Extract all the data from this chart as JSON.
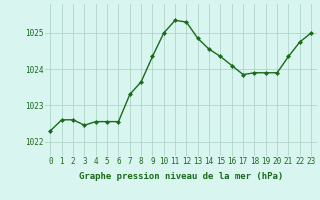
{
  "x": [
    0,
    1,
    2,
    3,
    4,
    5,
    6,
    7,
    8,
    9,
    10,
    11,
    12,
    13,
    14,
    15,
    16,
    17,
    18,
    19,
    20,
    21,
    22,
    23
  ],
  "y": [
    1022.3,
    1022.6,
    1022.6,
    1022.45,
    1022.55,
    1022.55,
    1022.55,
    1023.3,
    1023.65,
    1024.35,
    1025.0,
    1025.35,
    1025.3,
    1024.85,
    1024.55,
    1024.35,
    1024.1,
    1023.85,
    1023.9,
    1023.9,
    1023.9,
    1024.35,
    1024.75,
    1025.0
  ],
  "line_color": "#1a6b1a",
  "marker": "D",
  "marker_size": 2.0,
  "bg_color": "#d8f5f0",
  "grid_color": "#a8cfc0",
  "xlabel": "Graphe pression niveau de la mer (hPa)",
  "xlabel_color": "#1a6b1a",
  "xlabel_fontsize": 6.5,
  "ytick_labels": [
    "1022",
    "1023",
    "1024",
    "1025"
  ],
  "ytick_vals": [
    1022,
    1023,
    1024,
    1025
  ],
  "xtick_vals": [
    0,
    1,
    2,
    3,
    4,
    5,
    6,
    7,
    8,
    9,
    10,
    11,
    12,
    13,
    14,
    15,
    16,
    17,
    18,
    19,
    20,
    21,
    22,
    23
  ],
  "ylim": [
    1021.6,
    1025.8
  ],
  "xlim": [
    -0.5,
    23.5
  ],
  "tick_color": "#1a6b1a",
  "tick_fontsize": 5.5,
  "linewidth": 1.0
}
